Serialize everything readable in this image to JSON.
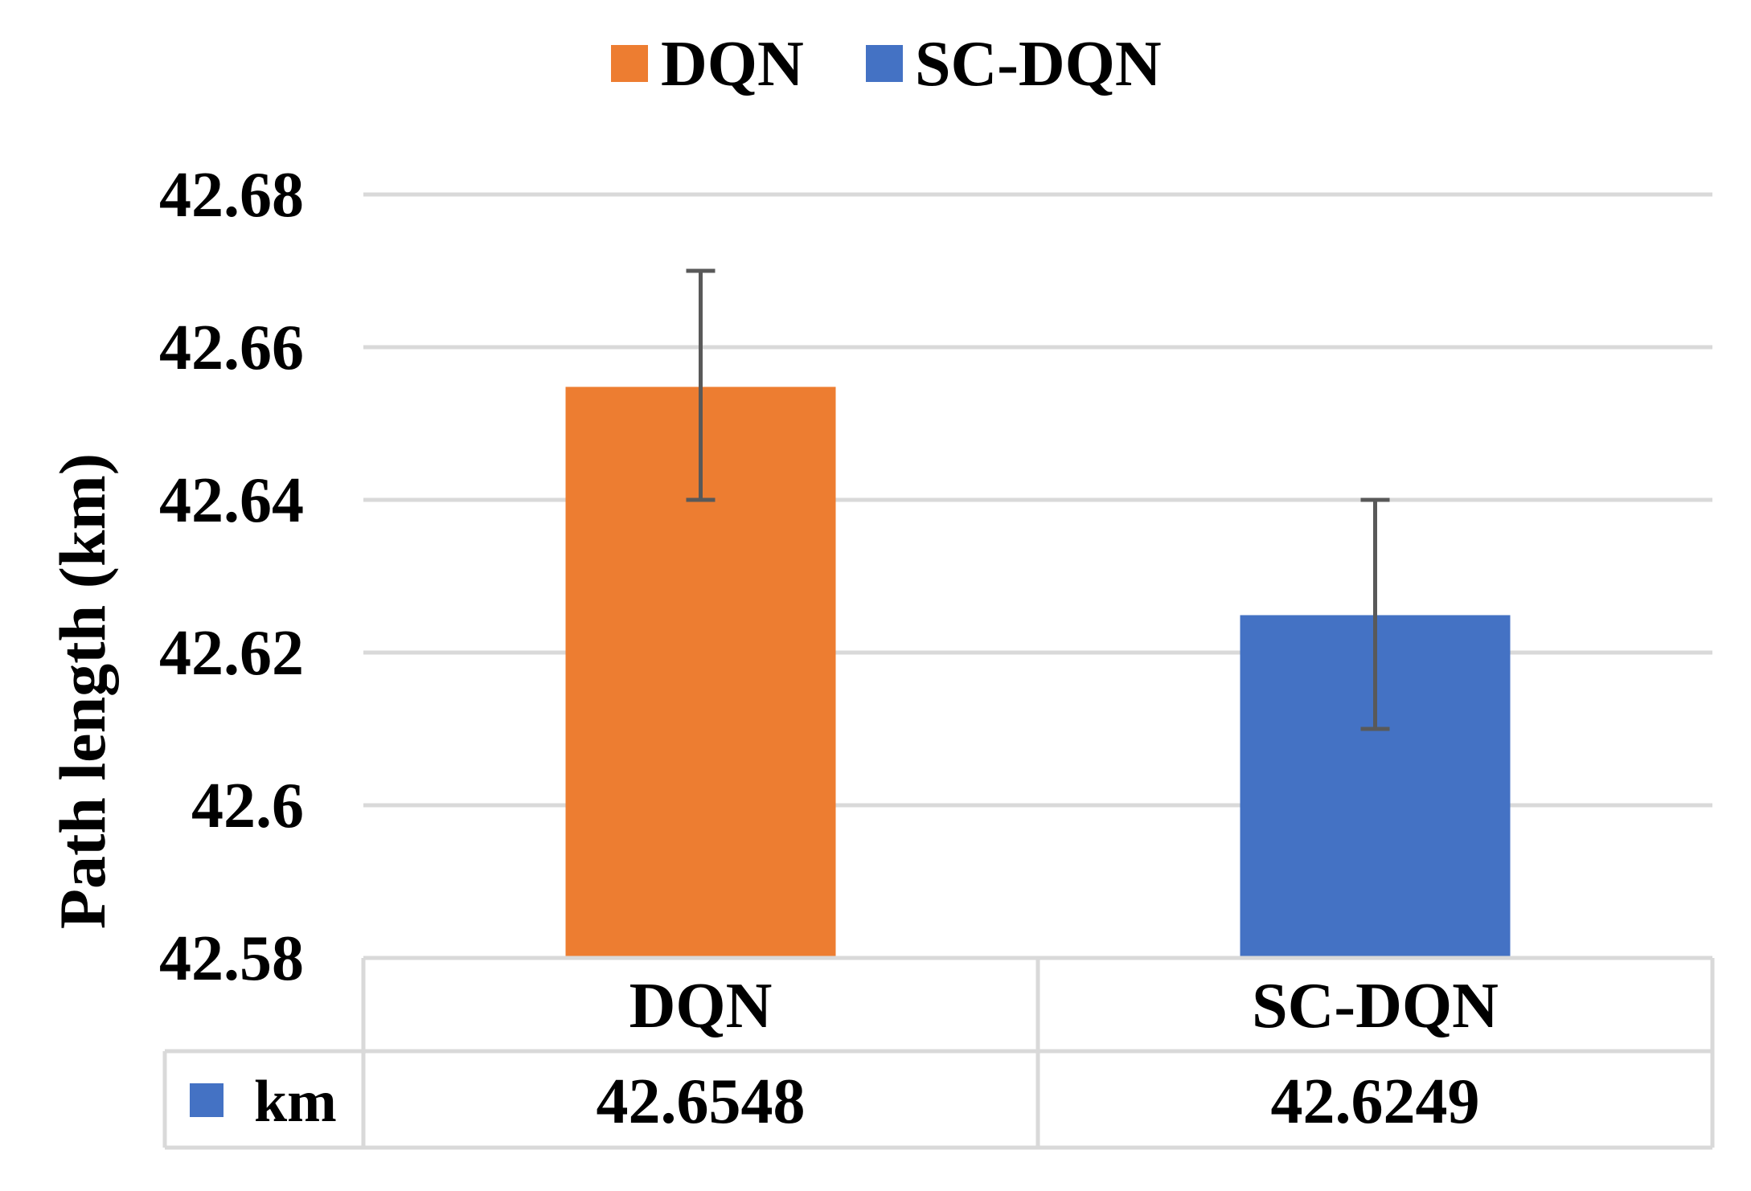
{
  "chart_data": {
    "type": "bar",
    "title": "",
    "categories": [
      "DQN",
      "SC-DQN"
    ],
    "series": [
      {
        "name": "km",
        "values": [
          42.6548,
          42.6249
        ],
        "value_labels": [
          "42.6548",
          "42.6249"
        ],
        "colors": [
          "#ED7D31",
          "#4472C4"
        ],
        "error_low": [
          42.64,
          42.61
        ],
        "error_high": [
          42.67,
          42.64
        ]
      }
    ],
    "legend": [
      {
        "label": "DQN",
        "color": "#ED7D31"
      },
      {
        "label": "SC-DQN",
        "color": "#4472C4"
      }
    ],
    "legend_position": "top",
    "xlabel": "",
    "ylabel": "Path length (km)",
    "ylim": [
      42.58,
      42.68
    ],
    "yticks": [
      "42.58",
      "42.6",
      "42.62",
      "42.64",
      "42.66",
      "42.68"
    ],
    "grid": true,
    "data_table": {
      "series_label": "km",
      "series_color": "#4472C4"
    }
  }
}
